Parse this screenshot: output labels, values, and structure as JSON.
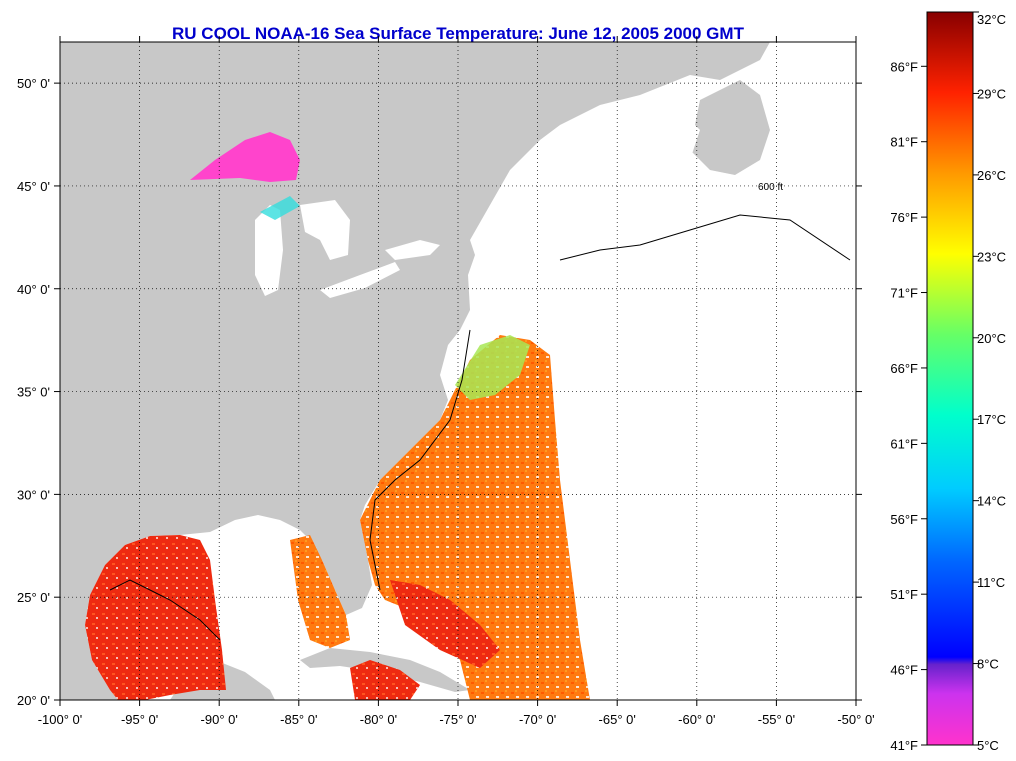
{
  "title": "RU COOL  NOAA-16  Sea Surface Temperature:  June 12, 2005 2000 GMT",
  "map": {
    "lon_range": [
      -100,
      -50
    ],
    "lat_range": [
      20,
      52
    ],
    "lon_ticks": [
      {
        "value": -100,
        "label": "-100° 0'"
      },
      {
        "value": -95,
        "label": "-95° 0'"
      },
      {
        "value": -90,
        "label": "-90° 0'"
      },
      {
        "value": -85,
        "label": "-85° 0'"
      },
      {
        "value": -80,
        "label": "-80° 0'"
      },
      {
        "value": -75,
        "label": "-75° 0'"
      },
      {
        "value": -70,
        "label": "-70° 0'"
      },
      {
        "value": -65,
        "label": "-65° 0'"
      },
      {
        "value": -60,
        "label": "-60° 0'"
      },
      {
        "value": -55,
        "label": "-55° 0'"
      },
      {
        "value": -50,
        "label": "-50° 0'"
      }
    ],
    "lat_ticks": [
      {
        "value": 20,
        "label": "20° 0'"
      },
      {
        "value": 25,
        "label": "25° 0'"
      },
      {
        "value": 30,
        "label": "30° 0'"
      },
      {
        "value": 35,
        "label": "35° 0'"
      },
      {
        "value": 40,
        "label": "40° 0'"
      },
      {
        "value": 45,
        "label": "45° 0'"
      },
      {
        "value": 50,
        "label": "50° 0'"
      }
    ],
    "contour_label": "600 ft",
    "land_color": "#c8c8c8",
    "ocean_nodata_color": "#ffffff"
  },
  "colorbar": {
    "celsius": [
      {
        "value": 32,
        "label": "32°C"
      },
      {
        "value": 29,
        "label": "29°C"
      },
      {
        "value": 26,
        "label": "26°C"
      },
      {
        "value": 23,
        "label": "23°C"
      },
      {
        "value": 20,
        "label": "20°C"
      },
      {
        "value": 17,
        "label": "17°C"
      },
      {
        "value": 14,
        "label": "14°C"
      },
      {
        "value": 11,
        "label": "11°C"
      },
      {
        "value": 8,
        "label": "8°C"
      },
      {
        "value": 5,
        "label": "5°C"
      }
    ],
    "fahrenheit": [
      {
        "value": 86,
        "label": "86°F"
      },
      {
        "value": 81,
        "label": "81°F"
      },
      {
        "value": 76,
        "label": "76°F"
      },
      {
        "value": 71,
        "label": "71°F"
      },
      {
        "value": 66,
        "label": "66°F"
      },
      {
        "value": 61,
        "label": "61°F"
      },
      {
        "value": 56,
        "label": "56°F"
      },
      {
        "value": 51,
        "label": "51°F"
      },
      {
        "value": 46,
        "label": "46°F"
      },
      {
        "value": 41,
        "label": "41°F"
      }
    ],
    "range_c": [
      5,
      32
    ],
    "gradient_stops": [
      "#ff33cc",
      "#aa33ee",
      "#5522cc",
      "#0000ff",
      "#0099ff",
      "#00ffee",
      "#88ff55",
      "#ffff00",
      "#ff9900",
      "#ff2200",
      "#cc0000",
      "#880000"
    ]
  }
}
